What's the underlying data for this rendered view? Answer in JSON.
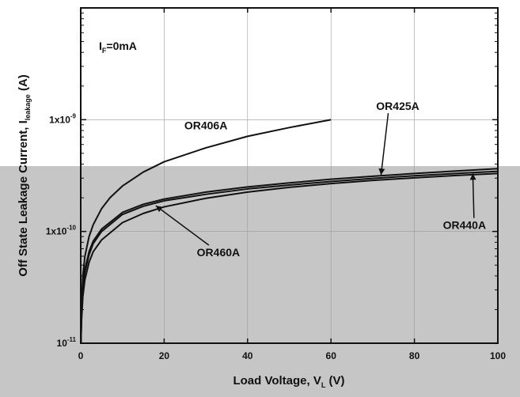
{
  "chart_data": {
    "type": "line",
    "xlabel": "Load Voltage, V",
    "xlabel_sub": "L",
    "xlabel_unit": " (V)",
    "ylabel": "Off State Leakage Current, I",
    "ylabel_sub": "leakage",
    "ylabel_unit": " (A)",
    "xlim": [
      0,
      100
    ],
    "ylim": [
      1e-11,
      1e-08
    ],
    "yscale": "log",
    "x_ticks": [
      0,
      20,
      40,
      60,
      80,
      100
    ],
    "x_tick_labels": [
      "0",
      "20",
      "40",
      "60",
      "80",
      "100"
    ],
    "y_ticks": [
      1e-11,
      1e-10,
      1e-09
    ],
    "y_tick_labels": [
      {
        "base": "10",
        "exp": "-11"
      },
      {
        "base": "1x10",
        "exp": "-10"
      },
      {
        "base": "1x10",
        "exp": "-9"
      }
    ],
    "annotation": {
      "main": "I",
      "sub": "F",
      "rest": "=0mA"
    },
    "background_colors": {
      "upper": "#ffffff",
      "lower": "#c6c6c6"
    },
    "series": [
      {
        "name": "OR406A",
        "x": [
          0.05,
          0.1,
          0.2,
          0.5,
          1,
          2,
          3,
          5,
          7,
          10,
          15,
          20,
          30,
          40,
          50,
          60
        ],
        "y": [
          1.1e-11,
          1.5e-11,
          2.2e-11,
          4e-11,
          6e-11,
          9e-11,
          1.15e-10,
          1.6e-10,
          2e-10,
          2.55e-10,
          3.4e-10,
          4.2e-10,
          5.6e-10,
          7.1e-10,
          8.5e-10,
          1e-09
        ]
      },
      {
        "name": "OR425A",
        "x": [
          0.05,
          0.1,
          0.2,
          0.5,
          1,
          2,
          3,
          5,
          10,
          15,
          20,
          30,
          40,
          50,
          60,
          70,
          80,
          90,
          100
        ],
        "y": [
          1e-11,
          1.3e-11,
          1.9e-11,
          3.2e-11,
          4.6e-11,
          6.6e-11,
          8.2e-11,
          1.05e-10,
          1.48e-10,
          1.75e-10,
          1.95e-10,
          2.25e-10,
          2.5e-10,
          2.72e-10,
          2.93e-10,
          3.12e-10,
          3.3e-10,
          3.47e-10,
          3.65e-10
        ]
      },
      {
        "name": "OR440A",
        "x": [
          0.05,
          0.1,
          0.2,
          0.5,
          1,
          2,
          3,
          5,
          10,
          15,
          20,
          30,
          40,
          50,
          60,
          70,
          80,
          90,
          100
        ],
        "y": [
          1e-11,
          1.25e-11,
          1.8e-11,
          3e-11,
          4.3e-11,
          6.2e-11,
          7.8e-11,
          1e-10,
          1.42e-10,
          1.68e-10,
          1.88e-10,
          2.15e-10,
          2.4e-10,
          2.6e-10,
          2.8e-10,
          2.98e-10,
          3.15e-10,
          3.3e-10,
          3.45e-10
        ]
      },
      {
        "name": "OR460A",
        "x": [
          0.05,
          0.1,
          0.2,
          0.5,
          1,
          2,
          3,
          5,
          10,
          15,
          20,
          30,
          40,
          50,
          60,
          70,
          80,
          90,
          100
        ],
        "y": [
          1e-11,
          1.2e-11,
          1.6e-11,
          2.6e-11,
          3.7e-11,
          5.3e-11,
          6.6e-11,
          8.4e-11,
          1.2e-10,
          1.45e-10,
          1.66e-10,
          1.98e-10,
          2.25e-10,
          2.48e-10,
          2.68e-10,
          2.86e-10,
          3.02e-10,
          3.17e-10,
          3.3e-10
        ]
      }
    ],
    "series_labels": [
      {
        "text": "OR406A",
        "series": "OR406A",
        "tx": 30,
        "ty": 8.2e-10
      },
      {
        "text": "OR425A",
        "series": "OR425A",
        "tx": 76,
        "ty": 1.22e-09,
        "arrow_to": [
          72,
          3.2e-10
        ]
      },
      {
        "text": "OR440A",
        "series": "OR440A",
        "tx": 92,
        "ty": 1.05e-10,
        "arrow_to": [
          94,
          3.3e-10
        ]
      },
      {
        "text": "OR460A",
        "series": "OR460A",
        "tx": 33,
        "ty": 6e-11,
        "arrow_to": [
          18,
          1.7e-10
        ]
      }
    ]
  }
}
